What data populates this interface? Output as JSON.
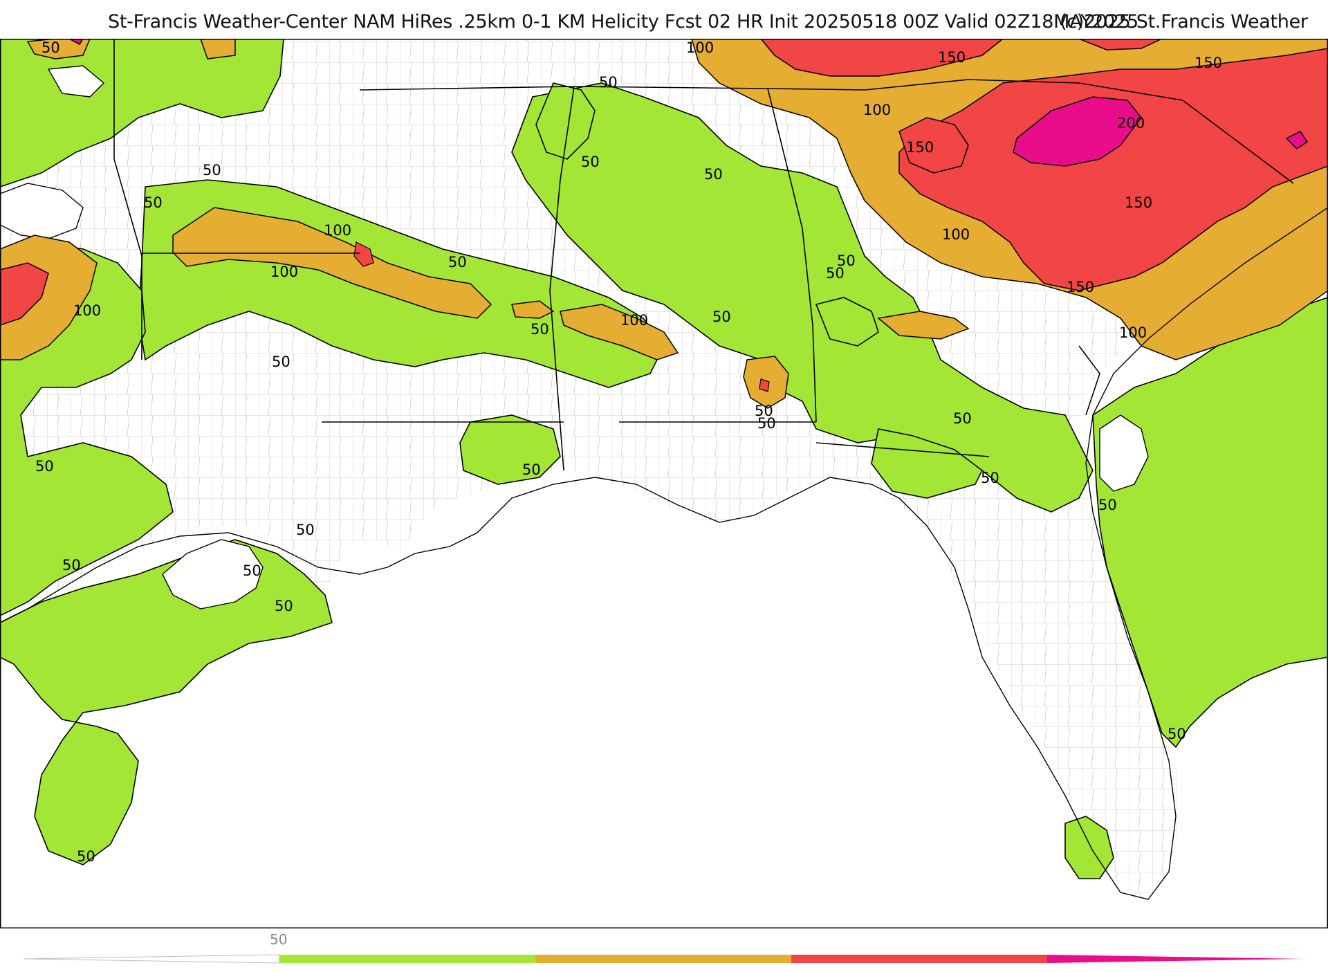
{
  "header": {
    "title": "St-Francis Weather-Center NAM HiRes .25km 0-1 KM Helicity Fcst 02 HR Init 20250518 00Z  Valid 02Z18MAY2025",
    "copyright": "(c)2025 St.Francis Weather"
  },
  "map": {
    "variable": "0-1 KM Helicity",
    "region": "US Gulf Coast / Southeast",
    "levels": [
      50,
      100,
      150,
      200
    ],
    "colors": {
      "level_50": "#a3e635",
      "level_100": "#e5ad31",
      "level_150": "#f24545",
      "level_200": "#e90d8b",
      "boundary": "#000000",
      "county": "#b5b5b5",
      "background": "#ffffff"
    },
    "contour_labels": [
      {
        "text": "50"
      },
      {
        "text": "50"
      },
      {
        "text": "50"
      },
      {
        "text": "50"
      },
      {
        "text": "50"
      },
      {
        "text": "50"
      },
      {
        "text": "50"
      },
      {
        "text": "50"
      },
      {
        "text": "50"
      },
      {
        "text": "50"
      },
      {
        "text": "50"
      },
      {
        "text": "50"
      },
      {
        "text": "50"
      },
      {
        "text": "50"
      },
      {
        "text": "50"
      },
      {
        "text": "50"
      },
      {
        "text": "50"
      },
      {
        "text": "50"
      },
      {
        "text": "50"
      },
      {
        "text": "50"
      },
      {
        "text": "50"
      },
      {
        "text": "50"
      },
      {
        "text": "50"
      },
      {
        "text": "50"
      },
      {
        "text": "50"
      },
      {
        "text": "100"
      },
      {
        "text": "100"
      },
      {
        "text": "100"
      },
      {
        "text": "100"
      },
      {
        "text": "100"
      },
      {
        "text": "100"
      },
      {
        "text": "100"
      },
      {
        "text": "100"
      },
      {
        "text": "150"
      },
      {
        "text": "150"
      },
      {
        "text": "150"
      },
      {
        "text": "150"
      },
      {
        "text": "150"
      },
      {
        "text": "200"
      }
    ]
  },
  "colorbar": {
    "label": "50",
    "segments": [
      {
        "color": "#a3e635"
      },
      {
        "color": "#e5ad31"
      },
      {
        "color": "#f24545"
      },
      {
        "color": "#e90d8b"
      }
    ]
  }
}
